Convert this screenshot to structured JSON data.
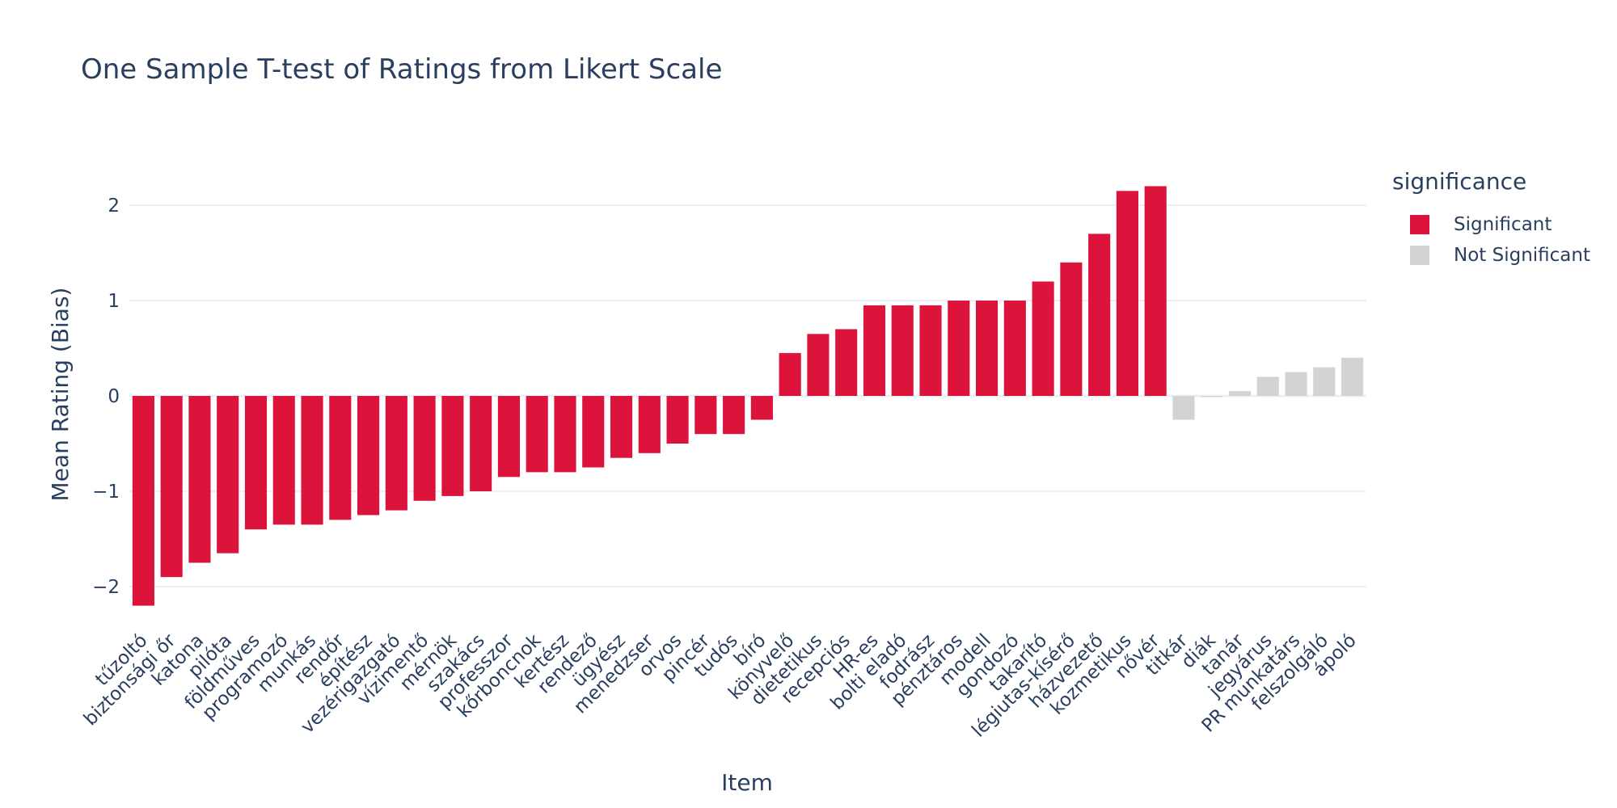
{
  "chart_data": {
    "type": "bar",
    "title": "One Sample T-test of Ratings from Likert Scale",
    "xlabel": "Item",
    "ylabel": "Mean Rating (Bias)",
    "ylim": [
      -2.4,
      2.4
    ],
    "yticks": [
      -2,
      -1,
      0,
      1,
      2
    ],
    "ytick_labels": [
      "−2",
      "−1",
      "0",
      "1",
      "2"
    ],
    "grid": true,
    "legend_position": "right",
    "legend_title": "significance",
    "colors": {
      "Significant": "#dc143c",
      "Not Significant": "#d3d3d3"
    },
    "series": [
      {
        "name": "Significant",
        "categories": [
          "tűzoltó",
          "biztonsági őr",
          "katona",
          "pilóta",
          "földműves",
          "programozó",
          "munkás",
          "rendőr",
          "építész",
          "vezérigazgató",
          "vízimentő",
          "mérnök",
          "szakács",
          "professzor",
          "kőrboncnok",
          "kertész",
          "rendező",
          "ügyész",
          "menedzser",
          "orvos",
          "pincér",
          "tudós",
          "bíró",
          "könyvelő",
          "dietetikus",
          "recepciós",
          "HR-es",
          "bolti eladó",
          "fodrász",
          "pénztáros",
          "modell",
          "gondozó",
          "takarító",
          "légiutas-kísérő",
          "házvezető",
          "kozmetikus",
          "nővér"
        ],
        "values": [
          -2.2,
          -1.9,
          -1.75,
          -1.65,
          -1.4,
          -1.35,
          -1.35,
          -1.3,
          -1.25,
          -1.2,
          -1.1,
          -1.05,
          -1.0,
          -0.85,
          -0.8,
          -0.8,
          -0.75,
          -0.65,
          -0.6,
          -0.5,
          -0.4,
          -0.4,
          -0.25,
          0.45,
          0.65,
          0.7,
          0.95,
          0.95,
          0.95,
          1.0,
          1.0,
          1.0,
          1.2,
          1.4,
          1.7,
          2.15,
          2.2
        ]
      },
      {
        "name": "Not Significant",
        "categories": [
          "titkár",
          "diák",
          "tanár",
          "jegyárus",
          "PR munkatárs",
          "felszolgáló",
          "ápoló"
        ],
        "values": [
          -0.25,
          0.0,
          0.05,
          0.2,
          0.25,
          0.3,
          0.4
        ]
      }
    ]
  }
}
